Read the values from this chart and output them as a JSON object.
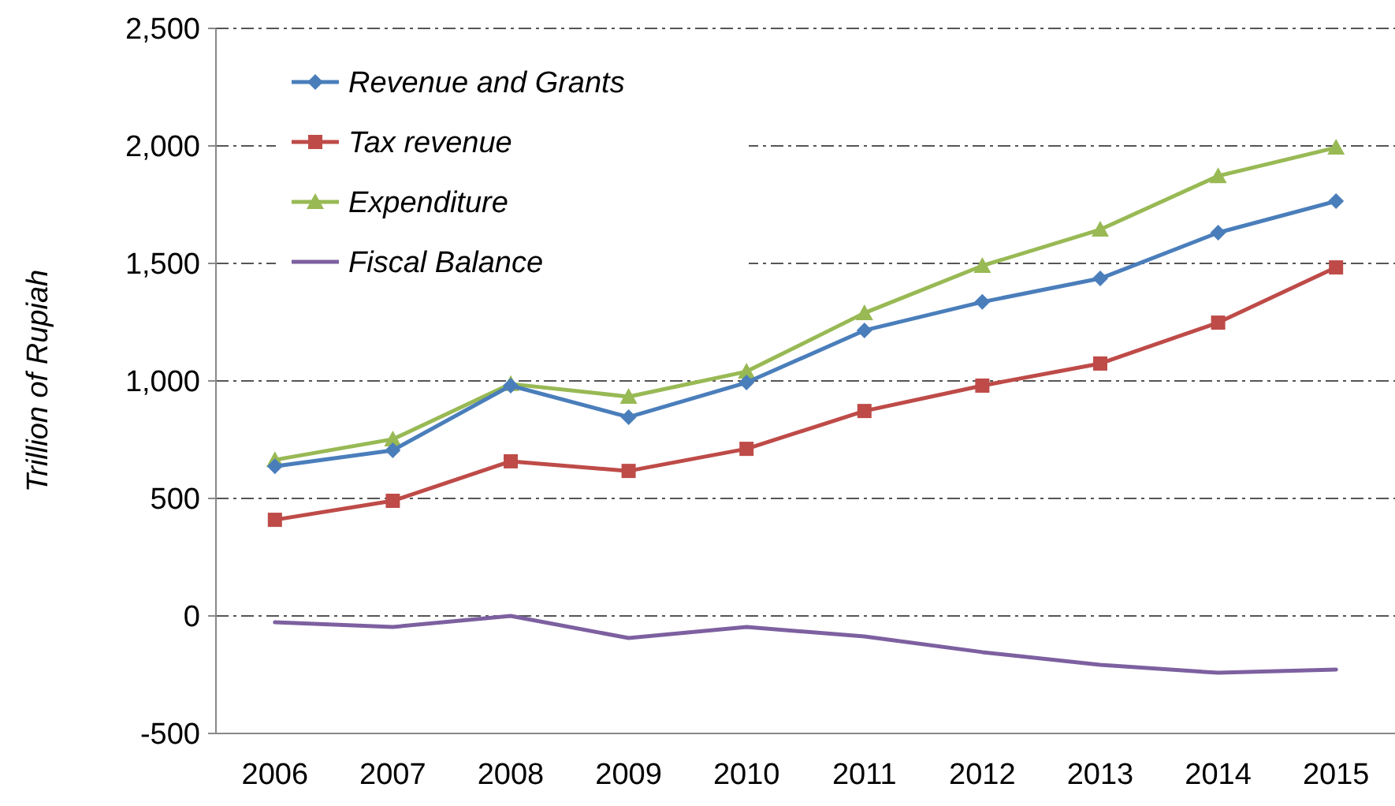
{
  "chart_data": {
    "type": "line",
    "ylabel": "Trillion of Rupiah",
    "categories": [
      "2006",
      "2007",
      "2008",
      "2009",
      "2010",
      "2011",
      "2012",
      "2013",
      "2014",
      "2015"
    ],
    "series": [
      {
        "name": "Revenue and Grants",
        "color": "#4a7ebb",
        "marker": "diamond",
        "values": [
          637,
          705,
          980,
          846,
          993,
          1215,
          1336,
          1436,
          1631,
          1765
        ]
      },
      {
        "name": "Tax revenue",
        "color": "#be4b48",
        "marker": "square",
        "values": [
          409,
          490,
          658,
          617,
          711,
          872,
          980,
          1074,
          1248,
          1483
        ]
      },
      {
        "name": "Expenditure",
        "color": "#98b954",
        "marker": "triangle",
        "values": [
          664,
          752,
          987,
          933,
          1040,
          1289,
          1490,
          1644,
          1872,
          1993
        ]
      },
      {
        "name": "Fiscal Balance",
        "color": "#7d60a0",
        "marker": "none",
        "values": [
          -27,
          -47,
          0,
          -94,
          -47,
          -87,
          -154,
          -208,
          -242,
          -228
        ]
      }
    ],
    "ylim": [
      -500,
      2500
    ],
    "yticks": [
      {
        "value": -500,
        "label": "-500"
      },
      {
        "value": 0,
        "label": "0"
      },
      {
        "value": 500,
        "label": "500"
      },
      {
        "value": 1000,
        "label": "1,000"
      },
      {
        "value": 1500,
        "label": "1,500"
      },
      {
        "value": 2000,
        "label": "2,000"
      },
      {
        "value": 2500,
        "label": "2,500"
      }
    ],
    "grid": "y",
    "legend": "top left",
    "line_style": "solid"
  }
}
